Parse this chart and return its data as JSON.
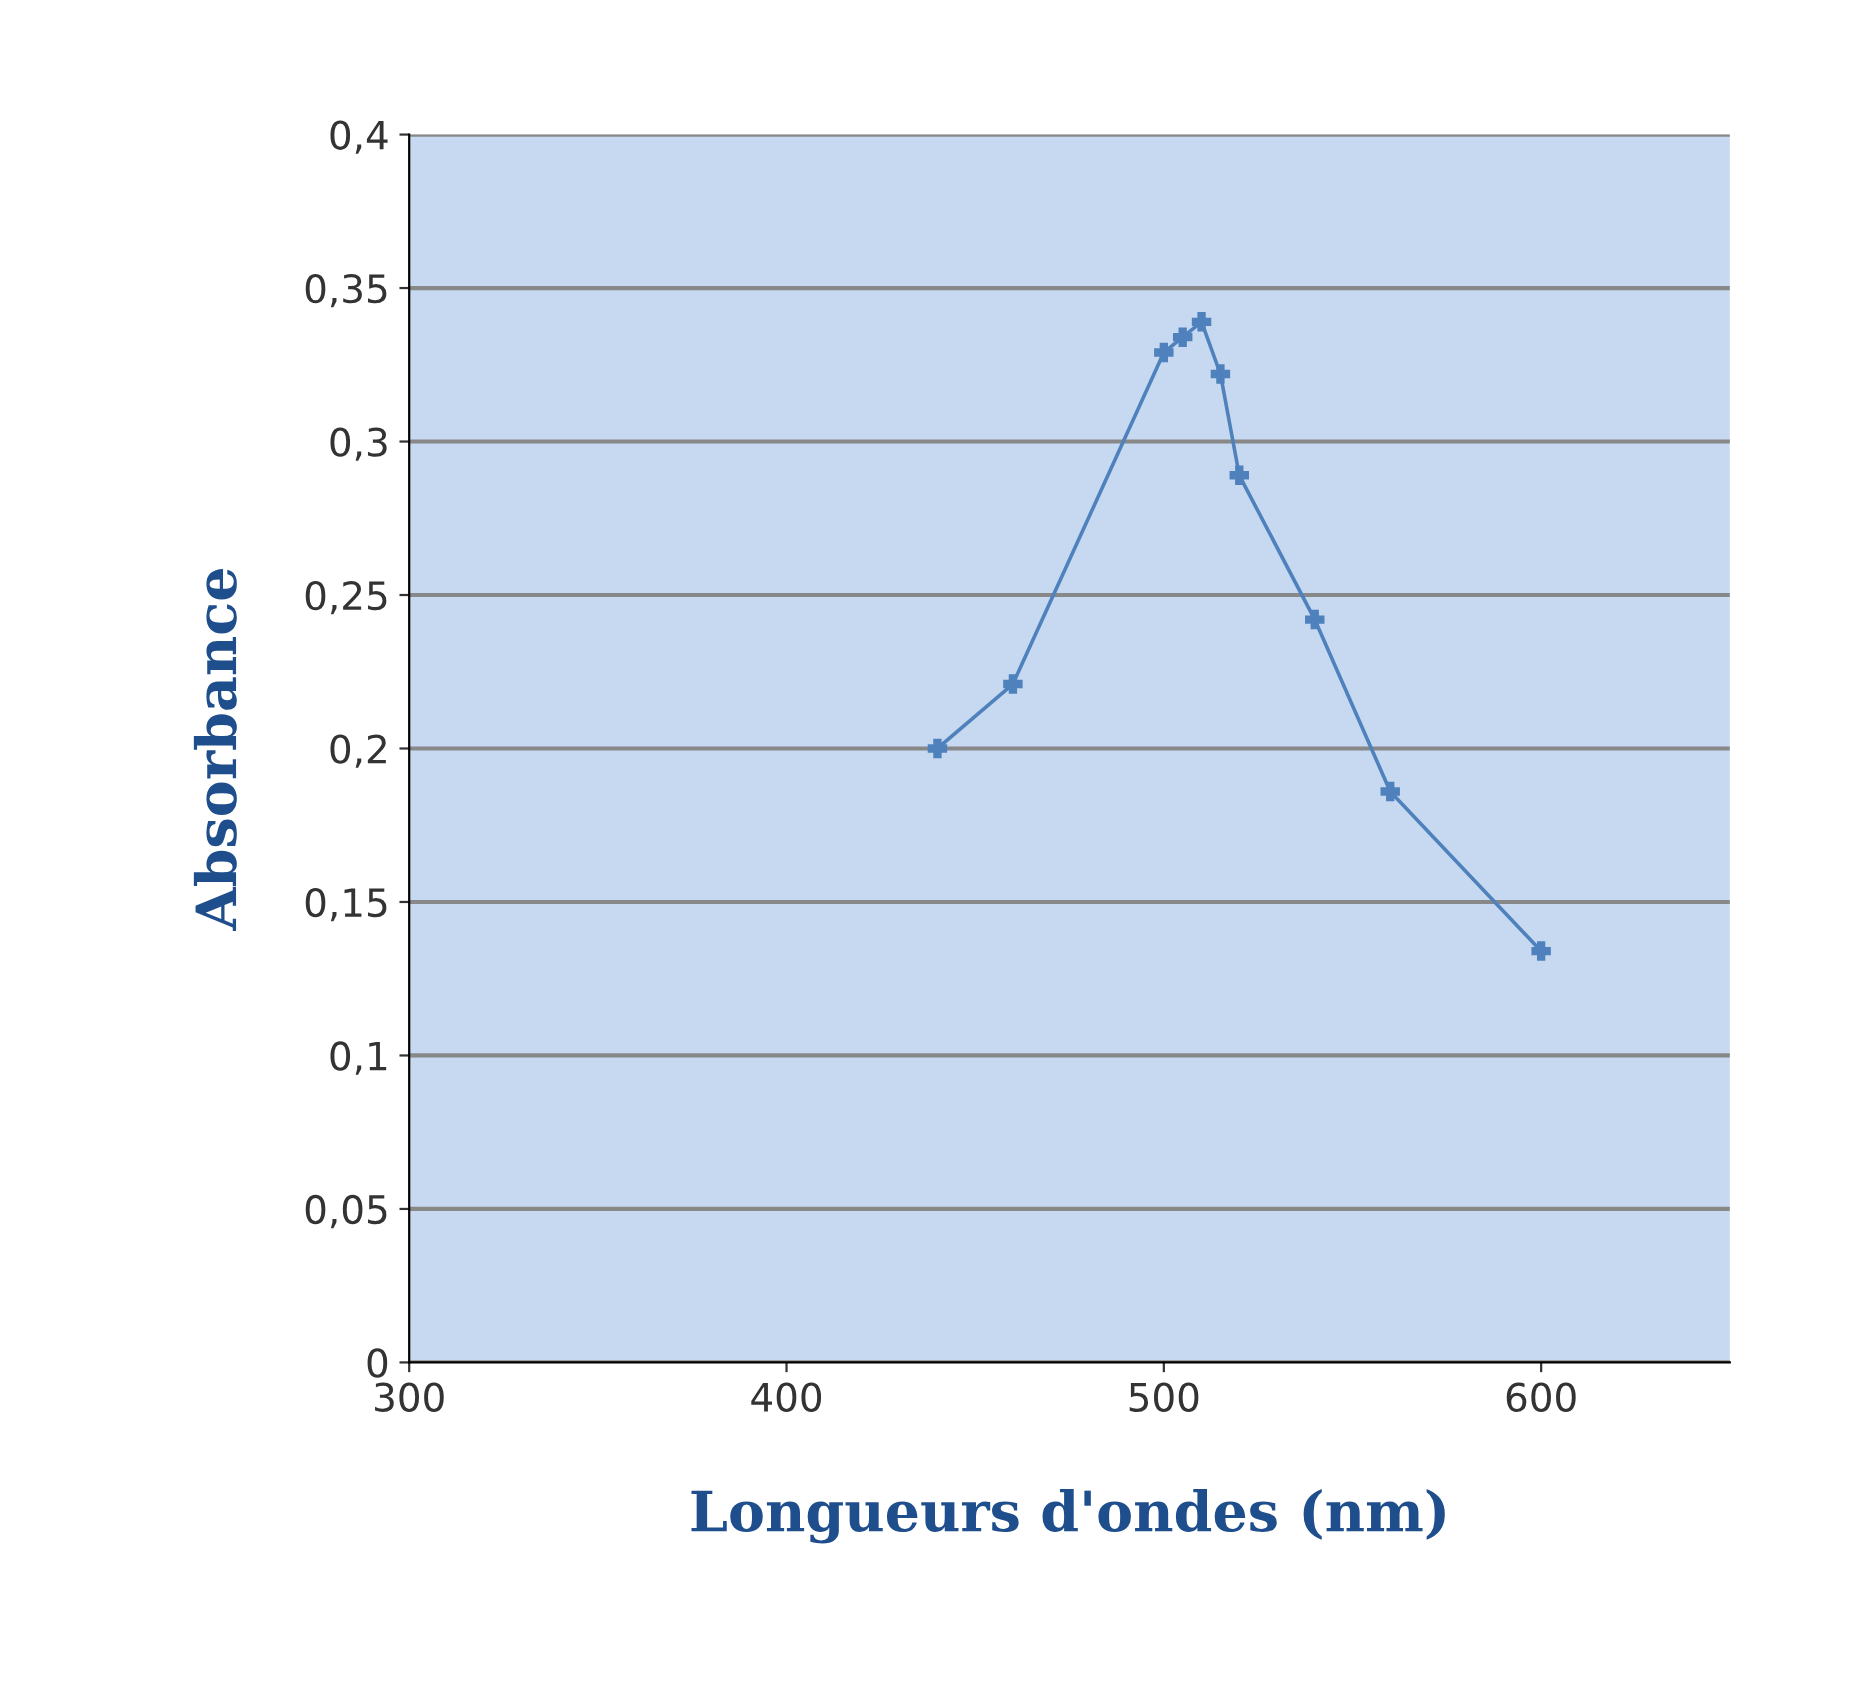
{
  "chart_data": {
    "type": "line",
    "xlabel": "Longueurs d'ondes (nm)",
    "ylabel": "Absorbance",
    "x": [
      440,
      460,
      500,
      505,
      510,
      515,
      520,
      540,
      560,
      600
    ],
    "series": [
      {
        "color": "#4f81bd",
        "values": [
          0.2,
          0.221,
          0.329,
          0.334,
          0.339,
          0.322,
          0.289,
          0.242,
          0.186,
          0.134
        ]
      }
    ],
    "xlim": [
      300,
      650
    ],
    "xticks": [
      300,
      400,
      500,
      600
    ],
    "ylim": [
      0,
      0.4
    ],
    "yticks": [
      {
        "value": 0,
        "label": "0"
      },
      {
        "value": 0.05,
        "label": "0,05"
      },
      {
        "value": 0.1,
        "label": "0,1"
      },
      {
        "value": 0.15,
        "label": "0,15"
      },
      {
        "value": 0.2,
        "label": "0,2"
      },
      {
        "value": 0.25,
        "label": "0,25"
      },
      {
        "value": 0.3,
        "label": "0,3"
      },
      {
        "value": 0.35,
        "label": "0,35"
      },
      {
        "value": 0.4,
        "label": "0,4"
      }
    ],
    "grid": "y",
    "marker": "cross",
    "line_style": "solid"
  }
}
